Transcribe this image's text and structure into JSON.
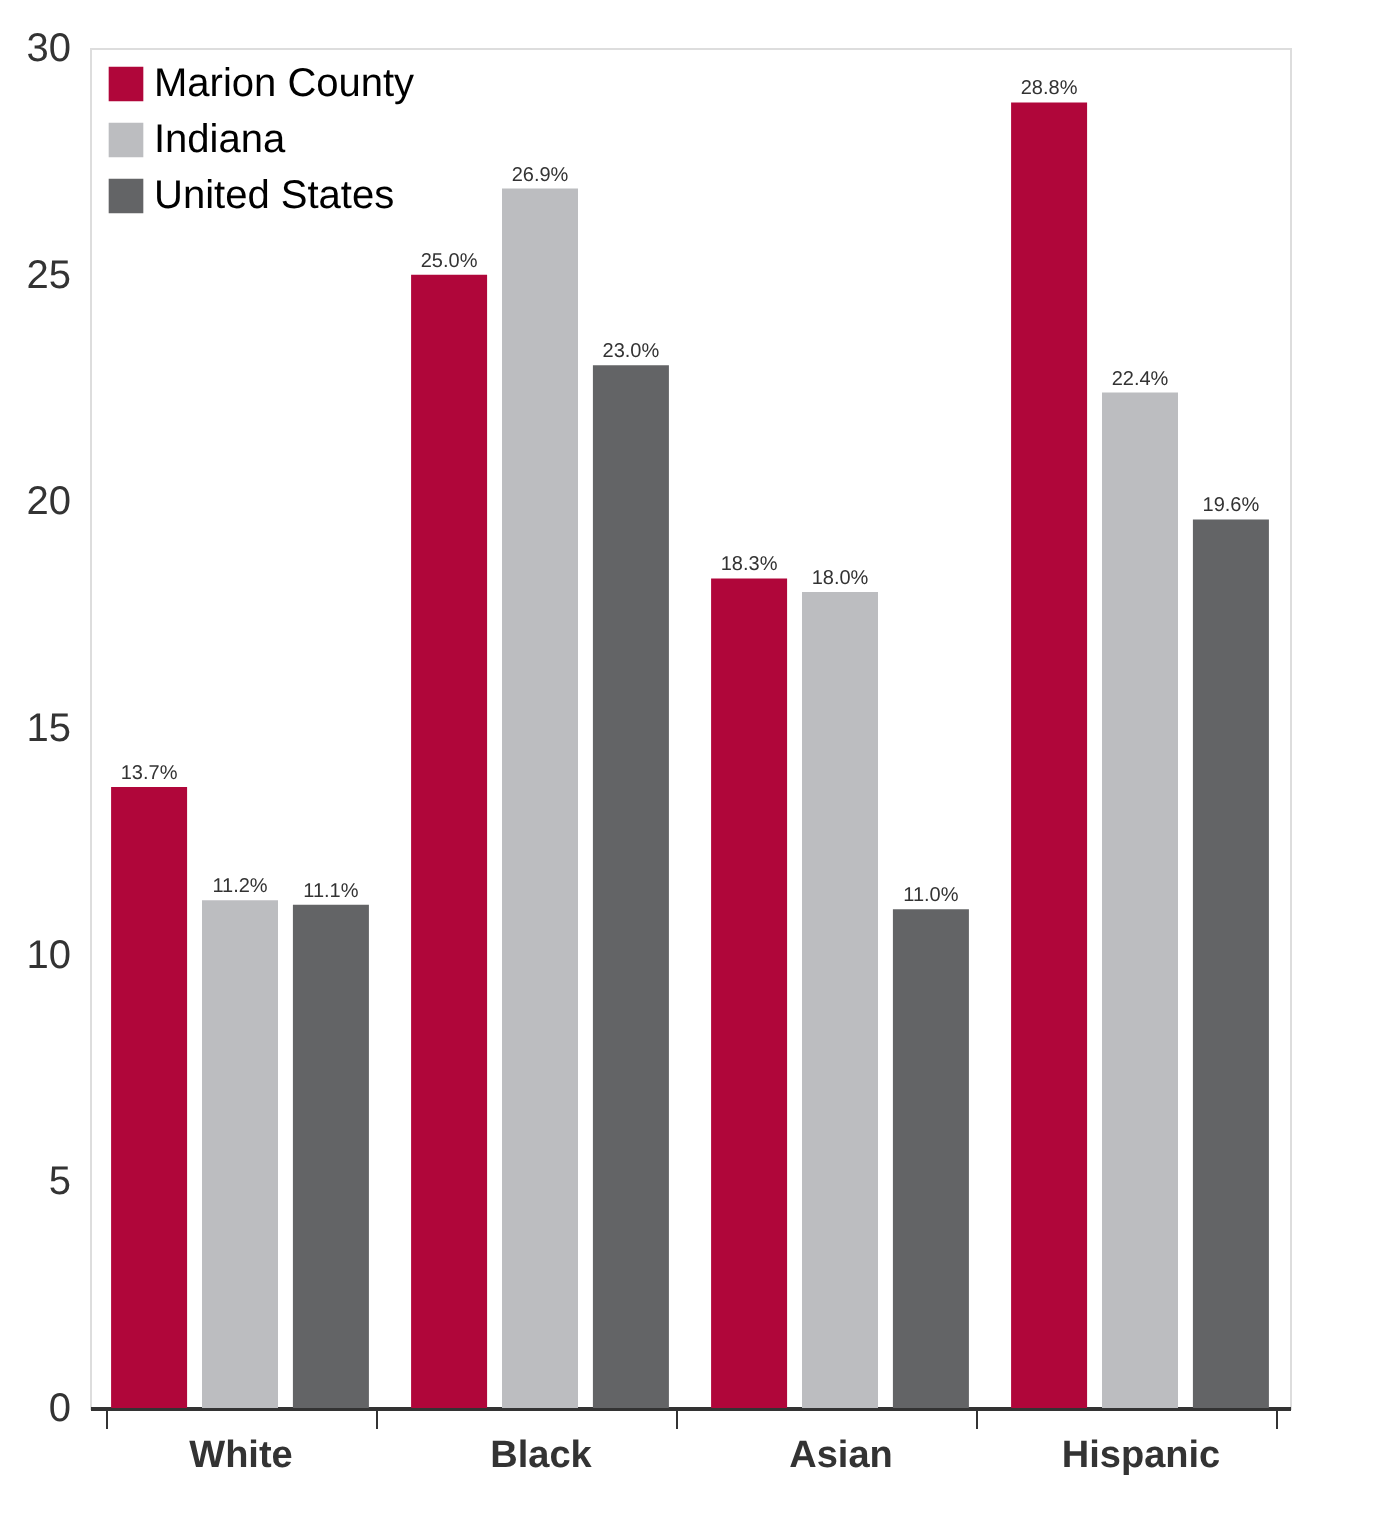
{
  "chart_data": {
    "type": "bar",
    "categories": [
      "White",
      "Black",
      "Asian",
      "Hispanic"
    ],
    "series": [
      {
        "name": "Marion County",
        "color": "#b0063a",
        "values": [
          13.7,
          25.0,
          18.3,
          28.8
        ],
        "value_labels": [
          "13.7%",
          "25.0%",
          "18.3%",
          "28.8%"
        ]
      },
      {
        "name": "Indiana",
        "color": "#bcbdc0",
        "values": [
          11.2,
          26.9,
          18.0,
          22.4
        ],
        "value_labels": [
          "11.2%",
          "26.9%",
          "18.0%",
          "22.4%"
        ]
      },
      {
        "name": "United States",
        "color": "#636466",
        "values": [
          11.1,
          23.0,
          11.0,
          19.6
        ],
        "value_labels": [
          "11.1%",
          "23.0%",
          "11.0%",
          "19.6%"
        ]
      }
    ],
    "ylim": [
      0,
      30
    ],
    "yticks": [
      0,
      5,
      10,
      15,
      20,
      25,
      30
    ],
    "grid": false,
    "legend": "top left"
  }
}
